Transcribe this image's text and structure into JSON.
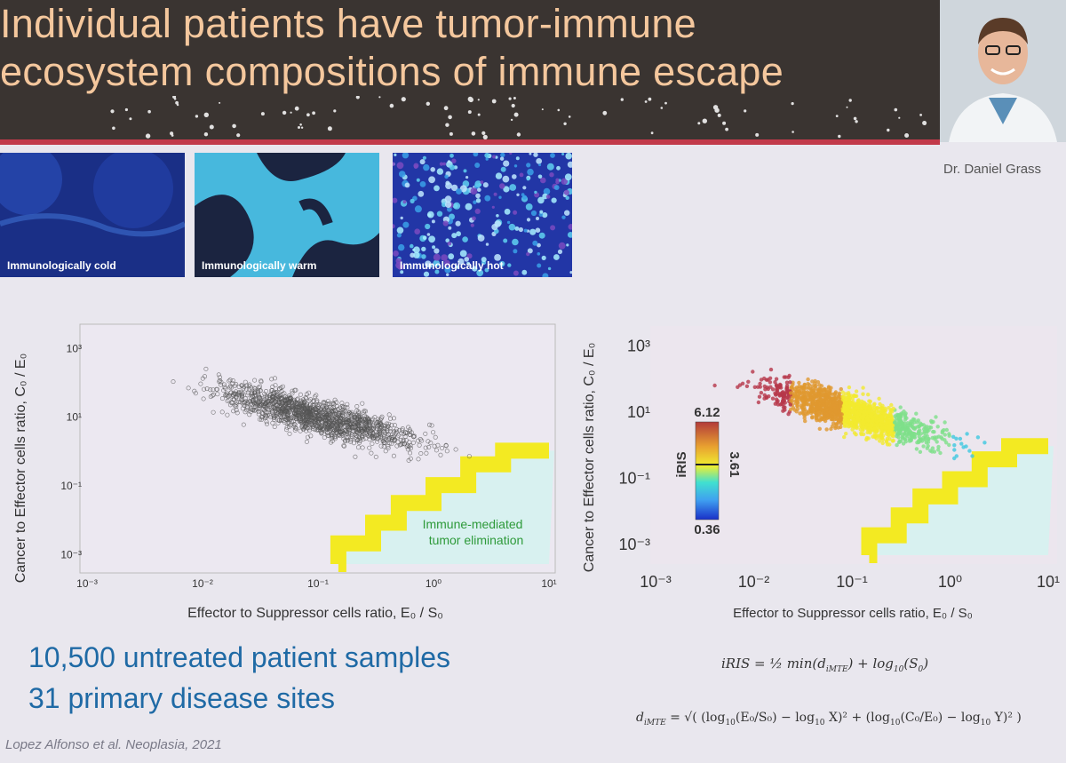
{
  "slide": {
    "title_line1": "Individual patients have tumor-immune",
    "title_line2": "ecosystem compositions of immune escape",
    "presenter": "Dr. Daniel Grass"
  },
  "thumbnails": [
    {
      "caption": "Immunologically cold",
      "color": "#1f3fa0"
    },
    {
      "caption": "Immunologically warm",
      "color": "#3fb0d8"
    },
    {
      "caption": "Immunologically hot",
      "color": "#2337a8"
    }
  ],
  "colors": {
    "header_bg": "#3a3431",
    "title_text": "#f4c79d",
    "accent_red": "#c23a4a",
    "body_text_blue": "#1f6aa5"
  },
  "chart_data": [
    {
      "type": "scatter",
      "xlabel": "Effector to Suppressor cells ratio, E₀ / S₀",
      "ylabel": "Cancer to Effector cells ratio, C₀ / E₀",
      "x_scale": "log",
      "y_scale": "log",
      "x_ticks": [
        "10⁻³",
        "10⁻²",
        "10⁻¹",
        "10⁰",
        "10¹"
      ],
      "y_ticks": [
        "10³",
        "10¹",
        "10⁻¹",
        "10⁻³"
      ],
      "xlim": [
        0.001,
        10
      ],
      "ylim": [
        0.0005,
        3000
      ],
      "annotation": [
        "Immune-mediated",
        "tumor elimination"
      ],
      "point_cloud": {
        "center_x": 0.1,
        "center_y": 10,
        "color": "#555555"
      }
    },
    {
      "type": "scatter",
      "xlabel": "Effector to Suppressor cells ratio, E₀ / S₀",
      "ylabel": "Cancer to Effector cells ratio, C₀ / E₀",
      "x_scale": "log",
      "y_scale": "log",
      "x_ticks": [
        "10⁻³",
        "10⁻²",
        "10⁻¹",
        "10⁰",
        "10¹"
      ],
      "y_ticks": [
        "10³",
        "10¹",
        "10⁻¹",
        "10⁻³"
      ],
      "xlim": [
        0.001,
        10
      ],
      "ylim": [
        0.0005,
        3000
      ],
      "colorbar": {
        "label": "iRIS",
        "ticks": [
          "6.12",
          "3.61",
          "0.36"
        ],
        "range": [
          0.36,
          6.12
        ]
      }
    }
  ],
  "bottom": {
    "line1": "10,500 untreated patient samples",
    "line2": "31 primary disease sites",
    "citation": "Lopez Alfonso et al. Neoplasia, 2021"
  }
}
